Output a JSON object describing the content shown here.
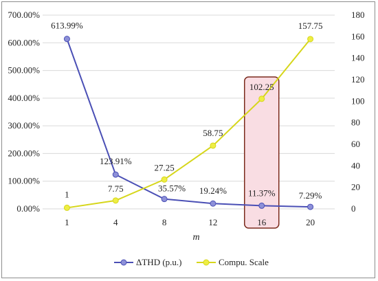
{
  "chart_data": {
    "type": "line",
    "x": [
      "1",
      "4",
      "8",
      "12",
      "16",
      "20"
    ],
    "xlabel": "m",
    "ylim_left": [
      0,
      7
    ],
    "yticks_left": [
      "0.00%",
      "100.00%",
      "200.00%",
      "300.00%",
      "400.00%",
      "500.00%",
      "600.00%",
      "700.00%"
    ],
    "ylim_right": [
      0,
      180
    ],
    "yticks_right": [
      "0",
      "20",
      "40",
      "60",
      "80",
      "100",
      "120",
      "140",
      "160",
      "180"
    ],
    "grid": true,
    "legend_position": "bottom",
    "highlight_category": "16",
    "series": [
      {
        "name": "ΔTHD (p.u.)",
        "axis": "left",
        "color": "#4a4fb5",
        "marker_fill": "#8d90d8",
        "values": [
          6.1399,
          1.2391,
          0.3557,
          0.1924,
          0.1137,
          0.0729
        ],
        "labels": [
          "613.99%",
          "123.91%",
          "35.57%",
          "19.24%",
          "11.37%",
          "7.29%"
        ]
      },
      {
        "name": "Compu. Scale",
        "axis": "right",
        "color": "#d6d61a",
        "marker_fill": "#eeee44",
        "values": [
          1,
          7.75,
          27.25,
          58.75,
          102.25,
          157.75
        ],
        "labels": [
          "1",
          "7.75",
          "27.25",
          "58.75",
          "102.25",
          "157.75"
        ]
      }
    ],
    "colors": {
      "highlight_fill": "#f9dde3",
      "highlight_border": "#7a2a1c",
      "grid": "#d9d9d9"
    }
  }
}
